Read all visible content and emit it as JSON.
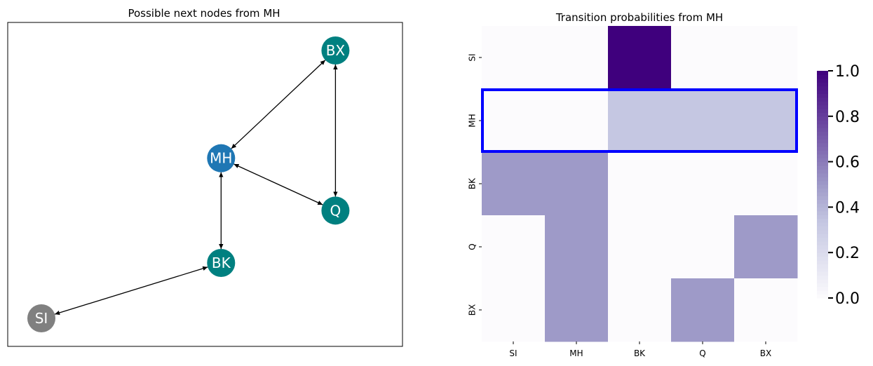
{
  "chart_data": [
    {
      "type": "network",
      "title": "Possible next nodes from MH",
      "current_node": "MH",
      "nodes": [
        {
          "id": "BX",
          "color": "#008080",
          "x": 0.9,
          "y": 0.95
        },
        {
          "id": "MH",
          "color": "#1f77b4",
          "x": 0.55,
          "y": 0.6
        },
        {
          "id": "Q",
          "color": "#008080",
          "x": 0.9,
          "y": 0.43
        },
        {
          "id": "BK",
          "color": "#008080",
          "x": 0.55,
          "y": 0.26
        },
        {
          "id": "SI",
          "color": "#808080",
          "x": 0.0,
          "y": 0.08
        }
      ],
      "edges": [
        {
          "source": "MH",
          "target": "BX",
          "directed": "both"
        },
        {
          "source": "BX",
          "target": "Q",
          "directed": "both"
        },
        {
          "source": "MH",
          "target": "Q",
          "directed": "both"
        },
        {
          "source": "MH",
          "target": "BK",
          "directed": "both"
        },
        {
          "source": "BK",
          "target": "SI",
          "directed": "both"
        }
      ]
    },
    {
      "type": "heatmap",
      "title": "Transition probabilities from MH",
      "xlabels": [
        "SI",
        "MH",
        "BK",
        "Q",
        "BX"
      ],
      "ylabels": [
        "SI",
        "MH",
        "BK",
        "Q",
        "BX"
      ],
      "values": [
        [
          0,
          0,
          1,
          0,
          0
        ],
        [
          0,
          0,
          0.333,
          0.333,
          0.333
        ],
        [
          0.5,
          0.5,
          0,
          0,
          0
        ],
        [
          0,
          0.5,
          0,
          0,
          0.5
        ],
        [
          0,
          0.5,
          0,
          0.5,
          0
        ]
      ],
      "highlight_row": "MH",
      "highlight_color": "#0000ff",
      "colormap": "Purples",
      "colorbar": {
        "min": 0.0,
        "max": 1.0,
        "ticks": [
          "0.0",
          "0.2",
          "0.4",
          "0.6",
          "0.8",
          "1.0"
        ]
      }
    }
  ]
}
